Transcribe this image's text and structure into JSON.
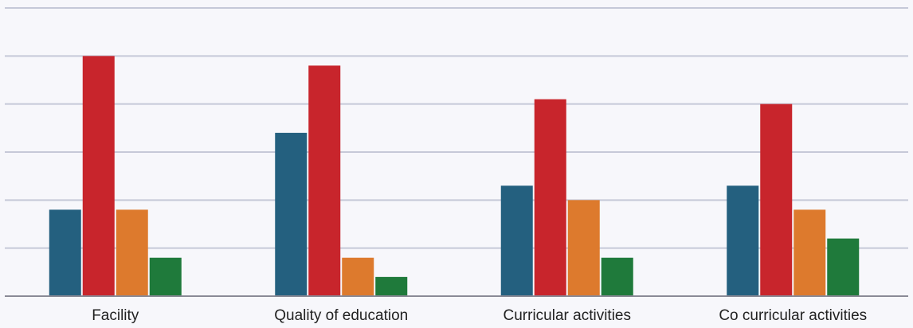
{
  "chart_data": {
    "type": "bar",
    "categories": [
      "Facility",
      "Quality of education",
      "Curricular activities",
      "Co curricular activities"
    ],
    "series": [
      {
        "color": "#24607f",
        "values": [
          9,
          17,
          11.5,
          11.5
        ]
      },
      {
        "color": "#c8252c",
        "values": [
          25,
          24,
          20.5,
          20
        ]
      },
      {
        "color": "#dd7a2d",
        "values": [
          9,
          4,
          10,
          9
        ]
      },
      {
        "color": "#1f7a3b",
        "values": [
          4,
          2,
          4,
          6
        ]
      }
    ],
    "ylim": [
      0,
      30
    ],
    "grid": true,
    "legend": "none"
  }
}
